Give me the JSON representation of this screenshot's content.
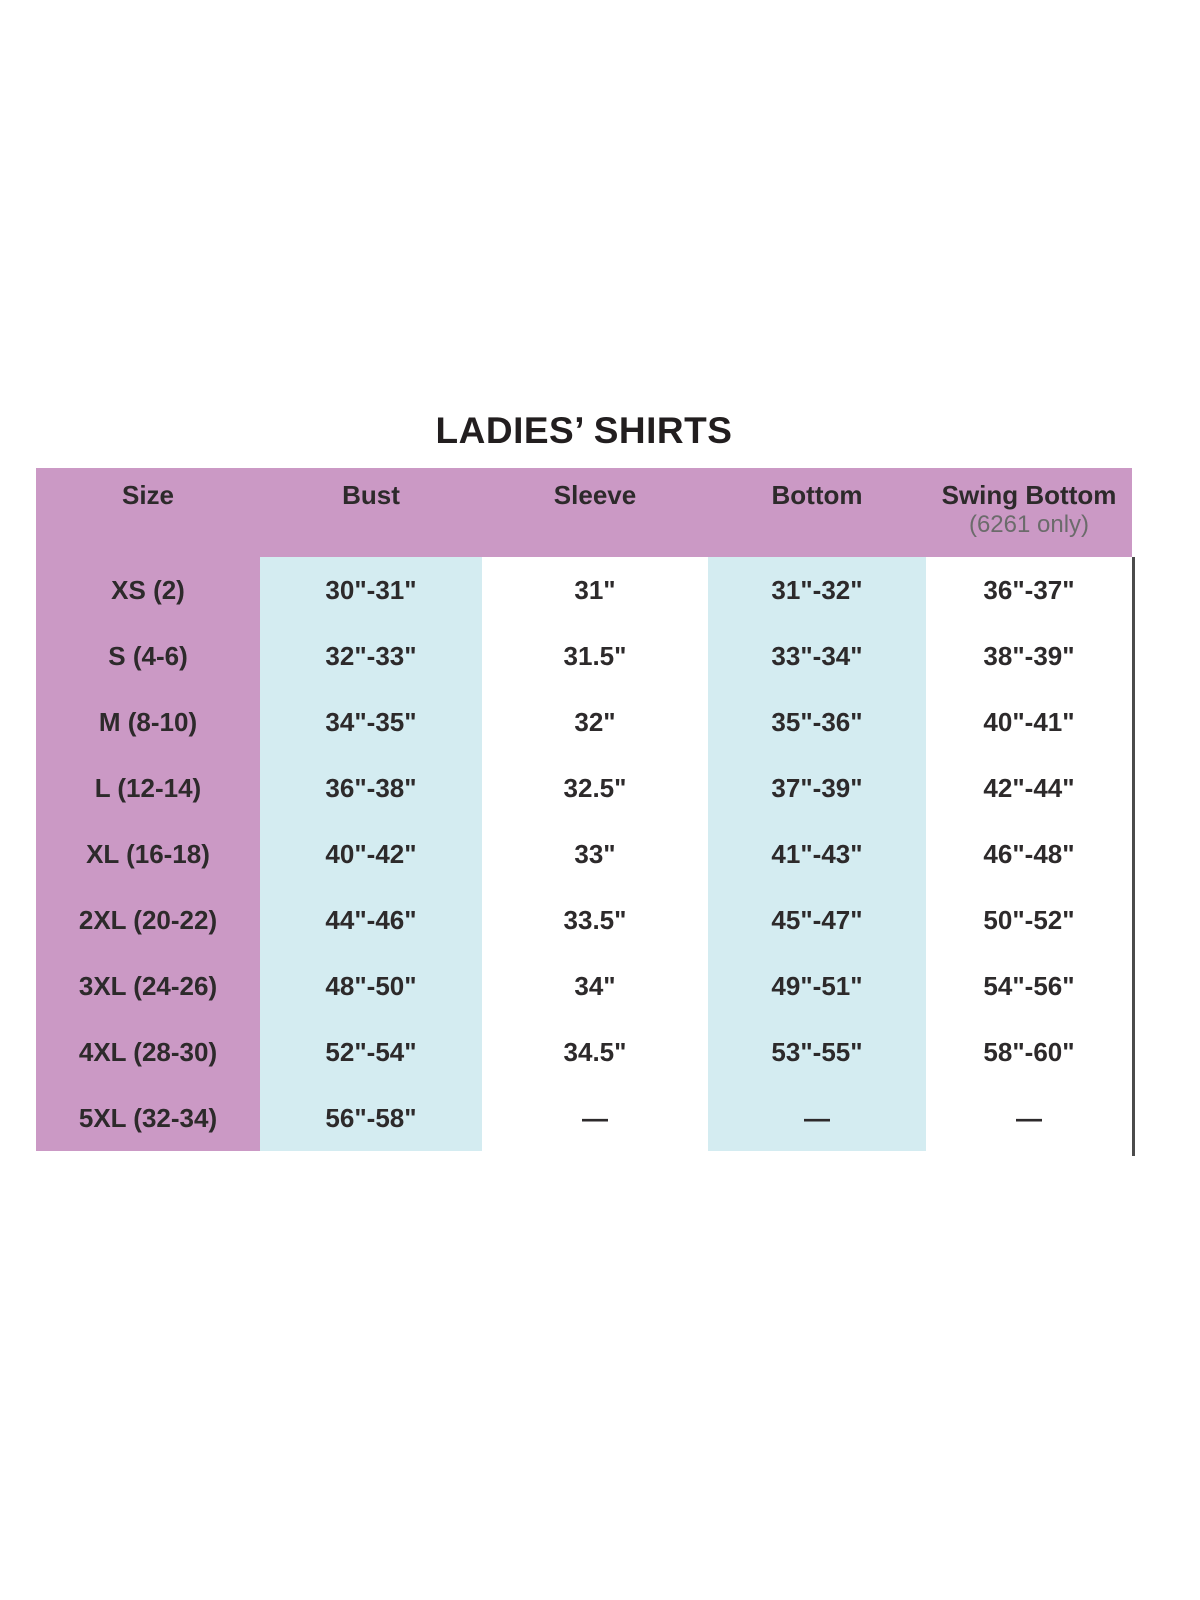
{
  "title": "LADIES’ SHIRTS",
  "header": {
    "size": "Size",
    "bust": "Bust",
    "sleeve": "Sleeve",
    "bottom": "Bottom",
    "swing": "Swing Bottom",
    "swing_note": "(6261 only)"
  },
  "rows": [
    {
      "size": "XS (2)",
      "bust": "30\"-31\"",
      "sleeve": "31\"",
      "bottom": "31\"-32\"",
      "swing": "36\"-37\""
    },
    {
      "size": "S (4-6)",
      "bust": "32\"-33\"",
      "sleeve": "31.5\"",
      "bottom": "33\"-34\"",
      "swing": "38\"-39\""
    },
    {
      "size": "M (8-10)",
      "bust": "34\"-35\"",
      "sleeve": "32\"",
      "bottom": "35\"-36\"",
      "swing": "40\"-41\""
    },
    {
      "size": "L (12-14)",
      "bust": "36\"-38\"",
      "sleeve": "32.5\"",
      "bottom": "37\"-39\"",
      "swing": "42\"-44\""
    },
    {
      "size": "XL (16-18)",
      "bust": "40\"-42\"",
      "sleeve": "33\"",
      "bottom": "41\"-43\"",
      "swing": "46\"-48\""
    },
    {
      "size": "2XL (20-22)",
      "bust": "44\"-46\"",
      "sleeve": "33.5\"",
      "bottom": "45\"-47\"",
      "swing": "50\"-52\""
    },
    {
      "size": "3XL (24-26)",
      "bust": "48\"-50\"",
      "sleeve": "34\"",
      "bottom": "49\"-51\"",
      "swing": "54\"-56\""
    },
    {
      "size": "4XL (28-30)",
      "bust": "52\"-54\"",
      "sleeve": "34.5\"",
      "bottom": "53\"-55\"",
      "swing": "58\"-60\""
    },
    {
      "size": "5XL (32-34)",
      "bust": "56\"-58\"",
      "sleeve": "—",
      "bottom": "—",
      "swing": "—"
    }
  ],
  "chart_data": {
    "type": "table",
    "title": "LADIES’ SHIRTS",
    "columns": [
      "Size",
      "Bust",
      "Sleeve",
      "Bottom",
      "Swing Bottom (6261 only)"
    ],
    "rows": [
      [
        "XS (2)",
        "30\"-31\"",
        "31\"",
        "31\"-32\"",
        "36\"-37\""
      ],
      [
        "S (4-6)",
        "32\"-33\"",
        "31.5\"",
        "33\"-34\"",
        "38\"-39\""
      ],
      [
        "M (8-10)",
        "34\"-35\"",
        "32\"",
        "35\"-36\"",
        "40\"-41\""
      ],
      [
        "L (12-14)",
        "36\"-38\"",
        "32.5\"",
        "37\"-39\"",
        "42\"-44\""
      ],
      [
        "XL (16-18)",
        "40\"-42\"",
        "33\"",
        "41\"-43\"",
        "46\"-48\""
      ],
      [
        "2XL (20-22)",
        "44\"-46\"",
        "33.5\"",
        "45\"-47\"",
        "50\"-52\""
      ],
      [
        "3XL (24-26)",
        "48\"-50\"",
        "34\"",
        "49\"-51\"",
        "54\"-56\""
      ],
      [
        "4XL (28-30)",
        "52\"-54\"",
        "34.5\"",
        "53\"-55\"",
        "58\"-60\""
      ],
      [
        "5XL (32-34)",
        "56\"-58\"",
        "—",
        "—",
        "—"
      ]
    ]
  },
  "colors": {
    "header_pink": "#cb99c5",
    "column_blue": "#d4ecf1",
    "text_dark": "#2d2a2b",
    "subnote_gray": "#6b6b6b",
    "edge_line": "#4b4b4b",
    "background": "#ffffff"
  }
}
